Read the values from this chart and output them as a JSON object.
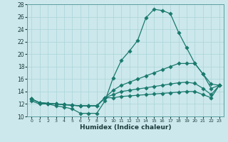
{
  "xlabel": "Humidex (Indice chaleur)",
  "bg_color": "#cce8ec",
  "line_color": "#1a7a6e",
  "grid_color": "#aad4d8",
  "x": [
    0,
    1,
    2,
    3,
    4,
    5,
    6,
    7,
    8,
    9,
    10,
    11,
    12,
    13,
    14,
    15,
    16,
    17,
    18,
    19,
    20,
    21,
    22,
    23
  ],
  "line1": [
    12.5,
    12.0,
    12.0,
    11.7,
    11.5,
    11.2,
    10.5,
    10.5,
    10.5,
    12.5,
    16.2,
    19.0,
    20.5,
    22.2,
    25.8,
    27.2,
    27.0,
    26.5,
    23.5,
    21.0,
    18.5,
    16.8,
    15.2,
    15.0
  ],
  "line2": [
    12.8,
    12.2,
    12.1,
    12.0,
    11.9,
    11.8,
    11.7,
    11.7,
    11.7,
    13.0,
    14.2,
    15.0,
    15.5,
    16.0,
    16.5,
    17.0,
    17.5,
    18.0,
    18.5,
    18.5,
    18.5,
    16.8,
    14.5,
    15.0
  ],
  "line3": [
    12.8,
    12.2,
    12.1,
    12.0,
    11.9,
    11.8,
    11.7,
    11.7,
    11.7,
    13.0,
    13.5,
    14.0,
    14.2,
    14.4,
    14.6,
    14.8,
    15.0,
    15.2,
    15.4,
    15.5,
    15.3,
    14.5,
    13.5,
    15.0
  ],
  "line4": [
    12.8,
    12.2,
    12.1,
    12.0,
    11.9,
    11.8,
    11.7,
    11.7,
    11.7,
    13.0,
    13.0,
    13.2,
    13.3,
    13.4,
    13.5,
    13.6,
    13.7,
    13.8,
    13.9,
    14.0,
    14.0,
    13.5,
    13.0,
    15.0
  ],
  "ylim": [
    10,
    28
  ],
  "xlim": [
    -0.5,
    23.5
  ],
  "yticks": [
    10,
    12,
    14,
    16,
    18,
    20,
    22,
    24,
    26,
    28
  ],
  "xtick_labels": [
    "0",
    "1",
    "2",
    "3",
    "4",
    "5",
    "6",
    "7",
    "8",
    "9",
    "10",
    "11",
    "12",
    "13",
    "14",
    "15",
    "16",
    "17",
    "18",
    "19",
    "20",
    "21",
    "22",
    "23"
  ]
}
